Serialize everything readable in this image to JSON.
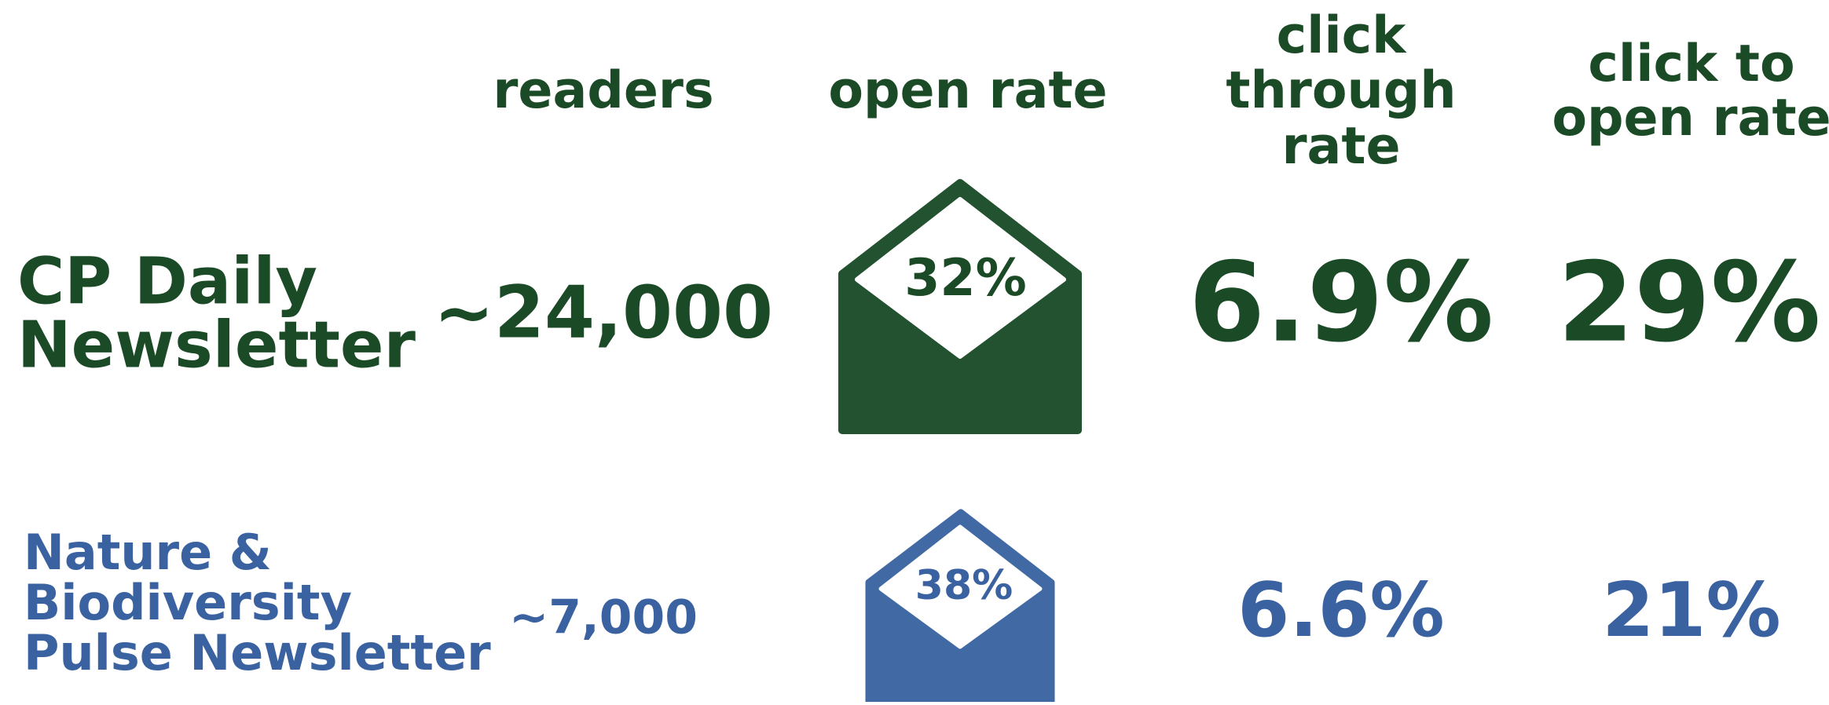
{
  "table": {
    "headers": [
      "readers",
      "open rate",
      [
        "click",
        "through",
        "rate"
      ],
      [
        "click to",
        "open rate"
      ]
    ],
    "rows": [
      {
        "name": [
          "CP Daily",
          "Newsletter"
        ],
        "readers": "~24,000",
        "open_rate": "32%",
        "click_through_rate": "6.9%",
        "click_to_open_rate": "29%"
      },
      {
        "name": [
          "Nature &",
          "Biodiversity",
          "Pulse Newsletter"
        ],
        "readers": "~7,000",
        "open_rate": "38%",
        "click_through_rate": "6.6%",
        "click_to_open_rate": "21%"
      }
    ]
  }
}
